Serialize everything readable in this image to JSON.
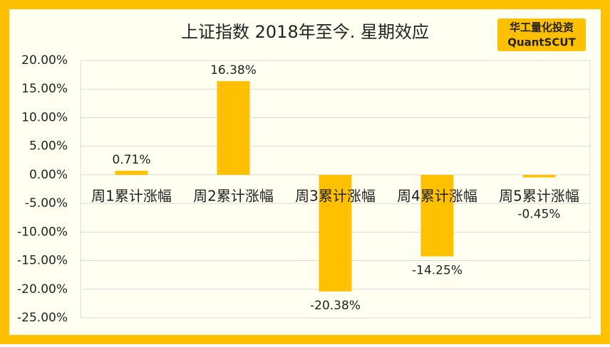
{
  "chart_data": {
    "type": "bar",
    "title": "上证指数 2018年至今. 星期效应",
    "logo": [
      "华工量化投资",
      "QuantSCUT"
    ],
    "categories": [
      "周1累计涨幅",
      "周2累计涨幅",
      "周3累计涨幅",
      "周4累计涨幅",
      "周5累计涨幅"
    ],
    "values": [
      0.71,
      16.38,
      -20.38,
      -14.25,
      -0.45
    ],
    "value_labels": [
      "0.71%",
      "16.38%",
      "-20.38%",
      "-14.25%",
      "-0.45%"
    ],
    "color": "#FFC000",
    "ylim": [
      -25,
      20
    ],
    "yticks": [
      {
        "value": -25,
        "label": "-25.00%"
      },
      {
        "value": -20,
        "label": "-20.00%"
      },
      {
        "value": -15,
        "label": "-15.00%"
      },
      {
        "value": -10,
        "label": "-10.00%"
      },
      {
        "value": -5,
        "label": "-5.00%"
      },
      {
        "value": 0,
        "label": "0.00%"
      },
      {
        "value": 5,
        "label": "5.00%"
      },
      {
        "value": 10,
        "label": "10.00%"
      },
      {
        "value": 15,
        "label": "15.00%"
      },
      {
        "value": 20,
        "label": "20.00%"
      }
    ],
    "grid": true
  }
}
